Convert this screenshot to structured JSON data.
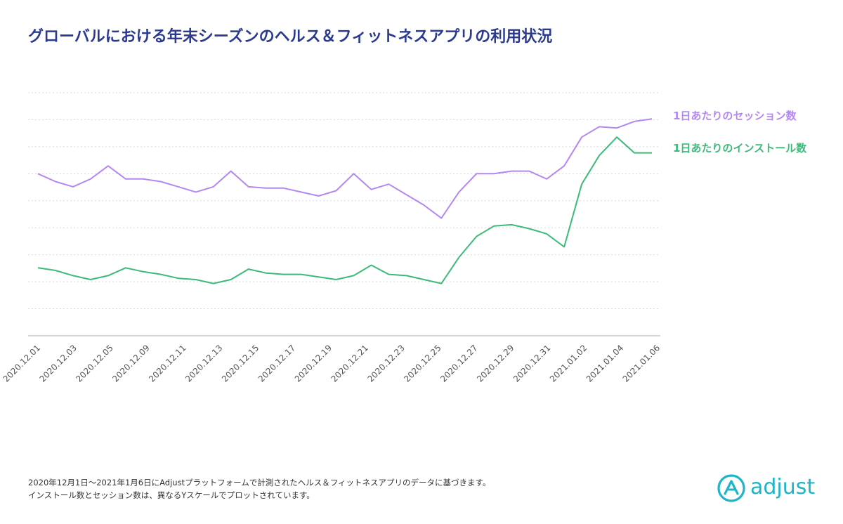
{
  "title": "グローバルにおける年末シーズンのヘルス＆フィットネスアプリの利用状況",
  "footnote": {
    "line1": "2020年12月1日〜2021年1月6日にAdjustプラットフォームで計測されたヘルス＆フィットネスアプリのデータに基づきます。",
    "line2": "インストール数とセッション数は、異なるYスケールでプロットされています。"
  },
  "logo": {
    "text": "adjust",
    "icon": "adjust-logo-icon",
    "color": "#1fb5c9"
  },
  "chart_data": {
    "type": "line",
    "title": "",
    "xlabel": "",
    "ylabel": "",
    "grid": true,
    "legend_placement": "right",
    "x_tick_labels": [
      "2020.12.01",
      "2020.12.03",
      "2020.12.05",
      "2020.12.09",
      "2020.12.11",
      "2020.12.13",
      "2020.12.15",
      "2020.12.17",
      "2020.12.19",
      "2020.12.21",
      "2020.12.23",
      "2020.12.25",
      "2020.12.27",
      "2020.12.29",
      "2020.12.31",
      "2021.01.02",
      "2021.01.04",
      "2021.01.06"
    ],
    "x": [
      "2020.12.01",
      "2020.12.02",
      "2020.12.03",
      "2020.12.04",
      "2020.12.05",
      "2020.12.06",
      "2020.12.07",
      "2020.12.08",
      "2020.12.09",
      "2020.12.10",
      "2020.12.11",
      "2020.12.12",
      "2020.12.13",
      "2020.12.14",
      "2020.12.15",
      "2020.12.16",
      "2020.12.17",
      "2020.12.18",
      "2020.12.19",
      "2020.12.20",
      "2020.12.21",
      "2020.12.22",
      "2020.12.23",
      "2020.12.24",
      "2020.12.25",
      "2020.12.26",
      "2020.12.27",
      "2020.12.28",
      "2020.12.29",
      "2020.12.30",
      "2020.12.31",
      "2021.01.01",
      "2021.01.02",
      "2021.01.03",
      "2021.01.04",
      "2021.01.05"
    ],
    "ylim": [
      0,
      9.3
    ],
    "series": [
      {
        "name": "1日あたりのセッション数",
        "color": "#b388f0",
        "values": [
          6.2,
          5.9,
          5.7,
          6.0,
          6.5,
          6.0,
          6.0,
          5.9,
          5.7,
          5.5,
          5.7,
          6.3,
          5.7,
          5.65,
          5.65,
          5.5,
          5.35,
          5.55,
          6.2,
          5.6,
          5.8,
          5.4,
          5.0,
          4.5,
          5.5,
          6.2,
          6.2,
          6.3,
          6.3,
          6.0,
          6.5,
          7.6,
          8.0,
          7.95,
          8.2,
          8.3
        ]
      },
      {
        "name": "1日あたりのインストール数",
        "color": "#3dba7a",
        "values": [
          2.6,
          2.5,
          2.3,
          2.15,
          2.3,
          2.6,
          2.45,
          2.35,
          2.2,
          2.15,
          2.0,
          2.15,
          2.55,
          2.4,
          2.35,
          2.35,
          2.25,
          2.15,
          2.3,
          2.7,
          2.35,
          2.3,
          2.15,
          2.0,
          3.0,
          3.8,
          4.2,
          4.25,
          4.1,
          3.9,
          3.4,
          5.8,
          6.9,
          7.6,
          7.0,
          7.0
        ]
      }
    ]
  }
}
